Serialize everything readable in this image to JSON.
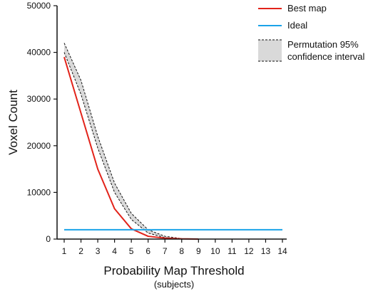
{
  "chart_data": {
    "type": "line",
    "title": "",
    "xlabel": "Probability Map Threshold",
    "xlabel_sub": "(subjects)",
    "ylabel": "Voxel Count",
    "x": [
      1,
      2,
      3,
      4,
      5,
      6,
      7,
      8,
      9,
      10,
      11,
      12,
      13,
      14
    ],
    "xlim": [
      1,
      14
    ],
    "ylim": [
      0,
      50000
    ],
    "yticks": [
      0,
      10000,
      20000,
      30000,
      40000,
      50000
    ],
    "grid": false,
    "legend_position": "top-right",
    "series": [
      {
        "name": "Best map",
        "color": "#e2231a",
        "x": [
          1,
          2,
          3,
          4,
          5,
          6,
          7,
          8,
          9
        ],
        "values": [
          39000,
          27000,
          15000,
          6500,
          2200,
          600,
          200,
          50,
          0
        ]
      },
      {
        "name": "Ideal",
        "color": "#1aa3e8",
        "x": [
          1,
          14
        ],
        "values": [
          2000,
          2000
        ]
      }
    ],
    "band": {
      "name": "Permutation 95% confidence interval",
      "fill": "#d9d9d9",
      "x": [
        1,
        2,
        3,
        4,
        5,
        6,
        7,
        8
      ],
      "upper": [
        42000,
        34000,
        22000,
        12000,
        5500,
        2000,
        600,
        100
      ],
      "lower": [
        40000,
        31000,
        19500,
        10000,
        4200,
        1300,
        300,
        50
      ]
    },
    "legend": [
      {
        "label": "Best map",
        "kind": "line",
        "color": "#e2231a"
      },
      {
        "label": "Ideal",
        "kind": "line",
        "color": "#1aa3e8"
      },
      {
        "label_lines": [
          "Permutation 95%",
          "confidence interval"
        ],
        "kind": "band",
        "color": "#d9d9d9"
      }
    ]
  }
}
